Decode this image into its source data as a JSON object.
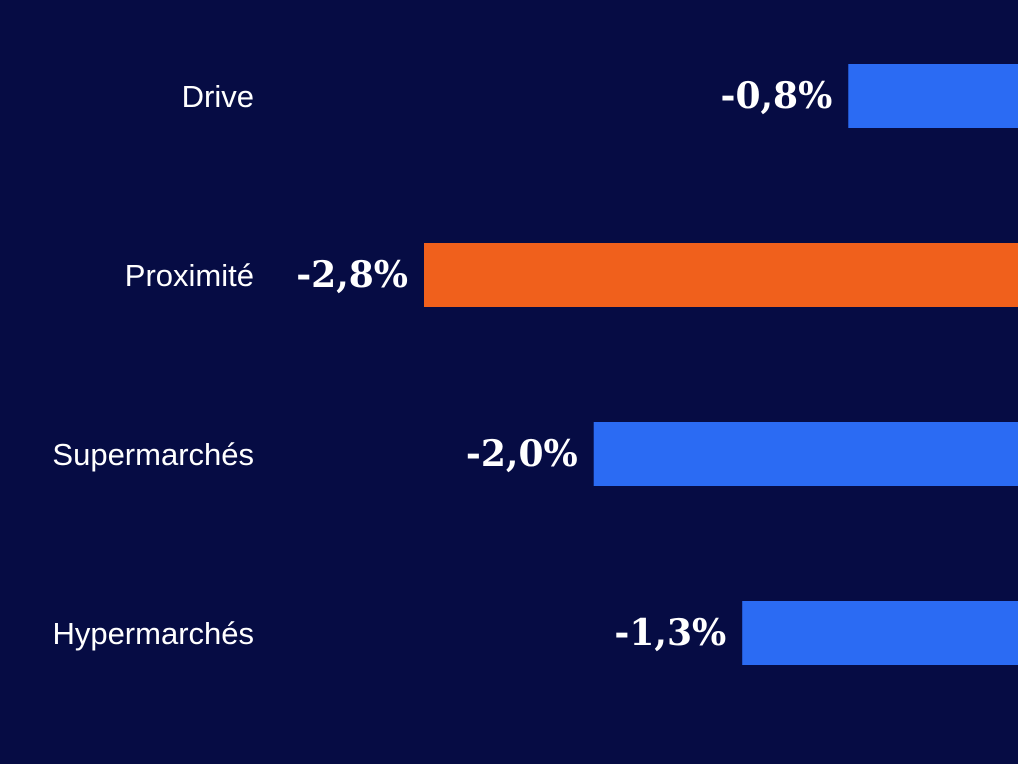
{
  "chart_data": {
    "type": "bar",
    "orientation": "horizontal",
    "categories": [
      "Drive",
      "Proximité",
      "Supermarchés",
      "Hypermarchés"
    ],
    "values": [
      -0.8,
      -2.8,
      -2.0,
      -1.3
    ],
    "value_labels": [
      "-0,8%",
      "-2,8%",
      "-2,0%",
      "-1,3%"
    ],
    "highlight_index": 1,
    "xlim": [
      -2.8,
      0
    ],
    "title": "",
    "xlabel": "",
    "ylabel": "",
    "grid": false,
    "legend": "none"
  },
  "colors": {
    "background": "#060c44",
    "bar": "#2b6bf3",
    "highlight": "#f0601c",
    "text": "#ffffff"
  }
}
